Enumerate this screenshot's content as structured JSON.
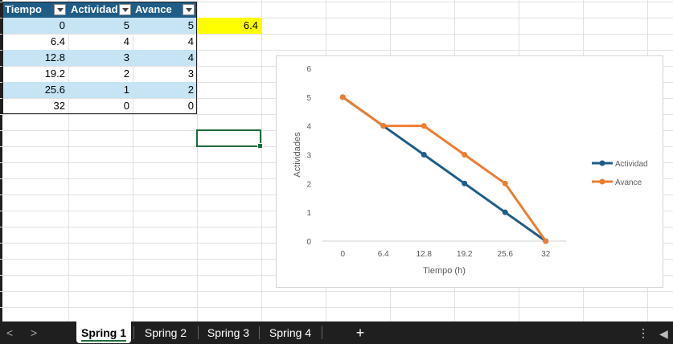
{
  "table": {
    "headers": [
      "Tiempo",
      "Actividad",
      "Avance"
    ],
    "rows": [
      [
        "0",
        "5",
        "5"
      ],
      [
        "6.4",
        "4",
        "4"
      ],
      [
        "12.8",
        "3",
        "4"
      ],
      [
        "19.2",
        "2",
        "3"
      ],
      [
        "25.6",
        "1",
        "2"
      ],
      [
        "32",
        "0",
        "0"
      ]
    ]
  },
  "highlight_cell": "6.4",
  "chart_data": {
    "type": "line",
    "x": [
      "0",
      "6.4",
      "12.8",
      "19.2",
      "25.6",
      "32"
    ],
    "series": [
      {
        "name": "Actividad",
        "values": [
          5,
          4,
          3,
          2,
          1,
          0
        ],
        "color": "#1f5c86"
      },
      {
        "name": "Avance",
        "values": [
          5,
          4,
          4,
          3,
          2,
          0
        ],
        "color": "#ed7d31"
      }
    ],
    "xlabel": "Tiempo (h)",
    "ylabel": "Actividades",
    "ylim": [
      0,
      6
    ],
    "yticks": [
      "0",
      "1",
      "2",
      "3",
      "4",
      "5",
      "6"
    ],
    "grid": false,
    "legend": "right"
  },
  "sheet_tabs": [
    "Spring 1",
    "Spring 2",
    "Spring 3",
    "Spring 4"
  ],
  "active_tab": "Spring 1",
  "add_sheet_label": "+",
  "nav": {
    "prev": "<",
    "next": ">",
    "more": "⋮"
  }
}
